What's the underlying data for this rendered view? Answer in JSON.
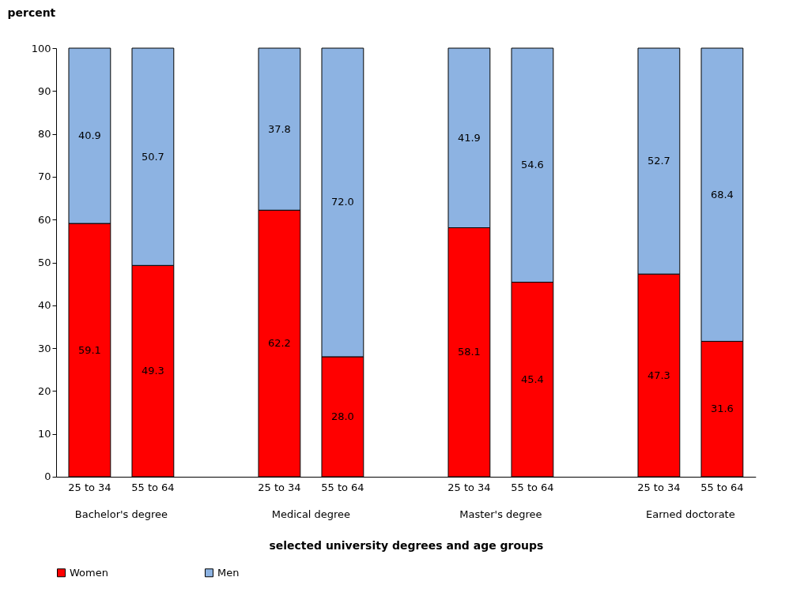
{
  "chart_data": {
    "type": "bar",
    "stacked": true,
    "ylabel": "percent",
    "xlabel": "selected university degrees and age groups",
    "categories": [
      "25 to 34",
      "55 to 64",
      "25 to 34",
      "55 to 64",
      "25 to 34",
      "55 to 64",
      "25 to 34",
      "55 to 64"
    ],
    "annotations": [
      "Bachelor's degree",
      "Medical degree",
      "Master's degree",
      "Earned doctorate"
    ],
    "series": [
      {
        "name": "Women",
        "color": "#ff0000",
        "values": [
          59.1,
          49.3,
          62.2,
          28.0,
          58.1,
          45.4,
          47.3,
          31.6
        ],
        "value_labels": [
          "59.1",
          "49.3",
          "62.2",
          "28.0",
          "58.1",
          "45.4",
          "47.3",
          "31.6"
        ]
      },
      {
        "name": "Men",
        "color": "#8db3e2",
        "values": [
          40.9,
          50.7,
          37.8,
          72.0,
          41.9,
          54.6,
          52.7,
          68.4
        ],
        "value_labels": [
          "40.9",
          "50.7",
          "37.8",
          "72.0",
          "41.9",
          "54.6",
          "52.7",
          "68.4"
        ]
      }
    ],
    "ylim": [
      0,
      100
    ],
    "yticks": [
      0,
      10,
      20,
      30,
      40,
      50,
      60,
      70,
      80,
      90,
      100
    ],
    "grid": false,
    "legend": "bottom"
  }
}
